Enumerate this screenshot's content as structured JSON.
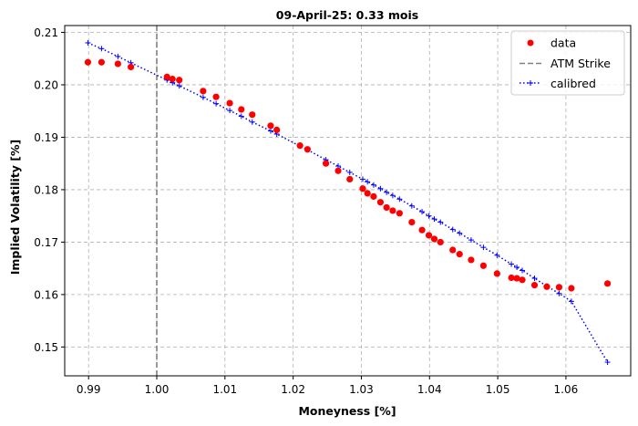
{
  "chart_data": {
    "type": "scatter",
    "title": "09-April-25: 0.33 mois",
    "xlabel": "Moneyness [%]",
    "ylabel": "Implied Volatility [%]",
    "xlim": [
      0.9865,
      1.0695
    ],
    "ylim": [
      0.1445,
      0.2113
    ],
    "xticks": [
      0.99,
      1.0,
      1.01,
      1.02,
      1.03,
      1.04,
      1.05,
      1.06
    ],
    "xtick_labels": [
      "0.99",
      "1.00",
      "1.01",
      "1.02",
      "1.03",
      "1.04",
      "1.05",
      "1.06"
    ],
    "yticks": [
      0.15,
      0.16,
      0.17,
      0.18,
      0.19,
      0.2,
      0.21
    ],
    "ytick_labels": [
      "0.15",
      "0.16",
      "0.17",
      "0.18",
      "0.19",
      "0.20",
      "0.21"
    ],
    "grid": true,
    "legend_position": "top-right",
    "atm_strike": 1.0,
    "series": [
      {
        "name": "data",
        "kind": "scatter",
        "color": "#ff0000",
        "points": [
          [
            0.9899,
            0.2043
          ],
          [
            0.9919,
            0.2043
          ],
          [
            0.9943,
            0.204
          ],
          [
            0.9962,
            0.2034
          ],
          [
            1.0015,
            0.2015
          ],
          [
            1.0023,
            0.2011
          ],
          [
            1.0033,
            0.2009
          ],
          [
            1.0068,
            0.1988
          ],
          [
            1.0087,
            0.1977
          ],
          [
            1.0107,
            0.1965
          ],
          [
            1.0124,
            0.1953
          ],
          [
            1.014,
            0.1943
          ],
          [
            1.0167,
            0.1922
          ],
          [
            1.0176,
            0.1914
          ],
          [
            1.021,
            0.1884
          ],
          [
            1.0221,
            0.1877
          ],
          [
            1.0248,
            0.185
          ],
          [
            1.0266,
            0.1836
          ],
          [
            1.0283,
            0.182
          ],
          [
            1.0302,
            0.1802
          ],
          [
            1.0309,
            0.1793
          ],
          [
            1.0318,
            0.1787
          ],
          [
            1.0328,
            0.1776
          ],
          [
            1.0337,
            0.1766
          ],
          [
            1.0346,
            0.176
          ],
          [
            1.0356,
            0.1755
          ],
          [
            1.0374,
            0.1738
          ],
          [
            1.0389,
            0.1723
          ],
          [
            1.0399,
            0.1713
          ],
          [
            1.0407,
            0.1706
          ],
          [
            1.0416,
            0.17
          ],
          [
            1.0434,
            0.1685
          ],
          [
            1.0444,
            0.1677
          ],
          [
            1.0461,
            0.1666
          ],
          [
            1.0479,
            0.1655
          ],
          [
            1.0499,
            0.164
          ],
          [
            1.052,
            0.1632
          ],
          [
            1.0528,
            0.1631
          ],
          [
            1.0536,
            0.1628
          ],
          [
            1.0554,
            0.1618
          ],
          [
            1.0572,
            0.1615
          ],
          [
            1.059,
            0.1614
          ],
          [
            1.0608,
            0.1612
          ],
          [
            1.0661,
            0.1621
          ]
        ]
      },
      {
        "name": "ATM Strike",
        "kind": "vline",
        "color": "#808080",
        "x": 1.0
      },
      {
        "name": "calibred",
        "kind": "line",
        "color": "#0000ff",
        "points": [
          [
            0.9899,
            0.208
          ],
          [
            0.9919,
            0.2069
          ],
          [
            0.9943,
            0.2054
          ],
          [
            0.9962,
            0.2042
          ],
          [
            1.0015,
            0.2009
          ],
          [
            1.0023,
            0.2004
          ],
          [
            1.0033,
            0.1998
          ],
          [
            1.0068,
            0.1976
          ],
          [
            1.0087,
            0.1964
          ],
          [
            1.0107,
            0.1951
          ],
          [
            1.0124,
            0.194
          ],
          [
            1.014,
            0.1929
          ],
          [
            1.0167,
            0.1912
          ],
          [
            1.0176,
            0.1906
          ],
          [
            1.021,
            0.1883
          ],
          [
            1.0221,
            0.1876
          ],
          [
            1.0248,
            0.1857
          ],
          [
            1.0266,
            0.1845
          ],
          [
            1.0283,
            0.1833
          ],
          [
            1.0302,
            0.182
          ],
          [
            1.0309,
            0.1815
          ],
          [
            1.0318,
            0.1809
          ],
          [
            1.0328,
            0.1802
          ],
          [
            1.0337,
            0.1795
          ],
          [
            1.0346,
            0.1789
          ],
          [
            1.0356,
            0.1782
          ],
          [
            1.0374,
            0.1769
          ],
          [
            1.0389,
            0.1758
          ],
          [
            1.0399,
            0.175
          ],
          [
            1.0407,
            0.1744
          ],
          [
            1.0416,
            0.1738
          ],
          [
            1.0434,
            0.1724
          ],
          [
            1.0444,
            0.1717
          ],
          [
            1.0461,
            0.1704
          ],
          [
            1.0479,
            0.169
          ],
          [
            1.0499,
            0.1675
          ],
          [
            1.052,
            0.1658
          ],
          [
            1.0528,
            0.1652
          ],
          [
            1.0536,
            0.1646
          ],
          [
            1.0554,
            0.1631
          ],
          [
            1.0572,
            0.1616
          ],
          [
            1.059,
            0.1602
          ],
          [
            1.0608,
            0.1587
          ],
          [
            1.0661,
            0.1471
          ]
        ]
      }
    ]
  }
}
